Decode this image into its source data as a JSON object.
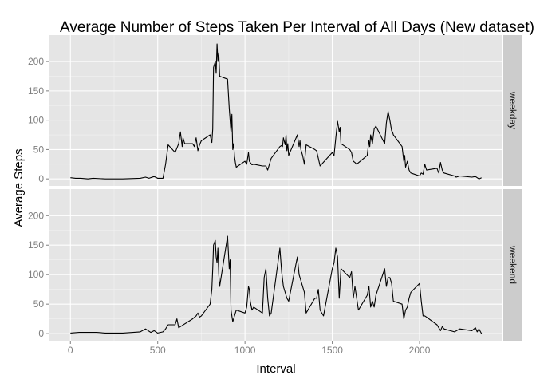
{
  "chart_data": {
    "type": "line",
    "title": "Average Number of Steps Taken Per Interval of All Days (New dataset)",
    "xlabel": "Interval",
    "ylabel": "Average Steps",
    "xlim": [
      -120,
      2475
    ],
    "ylim": [
      -12,
      245
    ],
    "x_ticks": [
      0,
      500,
      1000,
      1500,
      2000
    ],
    "y_ticks": [
      0,
      50,
      100,
      150,
      200
    ],
    "grid": true,
    "facet_strip_position": "right",
    "colors": {
      "panel_background": "#e5e5e5",
      "grid_major": "#ffffff",
      "grid_minor": "#f2f2f2",
      "strip_background": "#cccccc",
      "line": "#000000",
      "tick_label": "#7f7f7f"
    },
    "panels": [
      {
        "strip_label": "weekday",
        "x": [
          0,
          30,
          60,
          100,
          130,
          200,
          300,
          400,
          430,
          450,
          480,
          500,
          530,
          545,
          560,
          600,
          620,
          630,
          640,
          645,
          655,
          700,
          710,
          720,
          730,
          740,
          750,
          800,
          810,
          815,
          820,
          830,
          835,
          840,
          845,
          850,
          855,
          900,
          910,
          915,
          920,
          925,
          930,
          935,
          940,
          945,
          950,
          1000,
          1010,
          1020,
          1025,
          1030,
          1040,
          1050,
          1100,
          1120,
          1130,
          1150,
          1200,
          1210,
          1215,
          1220,
          1230,
          1235,
          1240,
          1245,
          1250,
          1300,
          1310,
          1315,
          1320,
          1330,
          1340,
          1350,
          1400,
          1410,
          1420,
          1430,
          1500,
          1510,
          1520,
          1530,
          1540,
          1545,
          1550,
          1600,
          1610,
          1620,
          1630,
          1640,
          1700,
          1710,
          1715,
          1720,
          1730,
          1740,
          1750,
          1800,
          1810,
          1820,
          1830,
          1840,
          1845,
          1850,
          1900,
          1910,
          1915,
          1920,
          1930,
          1940,
          1950,
          2000,
          2010,
          2020,
          2030,
          2040,
          2100,
          2110,
          2120,
          2130,
          2140,
          2200,
          2210,
          2230,
          2300,
          2320,
          2340,
          2355
        ],
        "y": [
          2,
          1,
          1,
          0,
          1,
          0,
          0,
          1,
          3,
          1,
          4,
          1,
          1,
          25,
          58,
          45,
          60,
          80,
          55,
          70,
          60,
          60,
          55,
          70,
          48,
          58,
          65,
          75,
          62,
          85,
          190,
          200,
          180,
          230,
          200,
          215,
          175,
          170,
          120,
          100,
          80,
          110,
          50,
          60,
          38,
          28,
          20,
          30,
          25,
          45,
          30,
          28,
          24,
          25,
          22,
          22,
          15,
          35,
          55,
          57,
          55,
          70,
          58,
          75,
          48,
          60,
          40,
          75,
          55,
          65,
          50,
          40,
          25,
          58,
          50,
          48,
          35,
          22,
          45,
          40,
          70,
          98,
          80,
          88,
          60,
          50,
          45,
          30,
          28,
          25,
          40,
          65,
          55,
          75,
          60,
          85,
          90,
          60,
          95,
          115,
          100,
          82,
          80,
          75,
          55,
          30,
          40,
          20,
          30,
          15,
          10,
          5,
          10,
          8,
          25,
          15,
          18,
          10,
          28,
          15,
          10,
          5,
          3,
          5,
          3,
          4,
          0,
          2
        ]
      },
      {
        "strip_label": "weekend",
        "x": [
          0,
          50,
          100,
          150,
          200,
          300,
          400,
          430,
          460,
          480,
          500,
          530,
          545,
          560,
          600,
          610,
          620,
          630,
          700,
          720,
          730,
          740,
          750,
          800,
          810,
          815,
          820,
          830,
          835,
          840,
          845,
          850,
          855,
          900,
          910,
          915,
          920,
          930,
          940,
          950,
          1000,
          1010,
          1020,
          1025,
          1030,
          1040,
          1050,
          1100,
          1110,
          1120,
          1130,
          1140,
          1150,
          1200,
          1210,
          1220,
          1230,
          1240,
          1250,
          1300,
          1310,
          1320,
          1330,
          1340,
          1350,
          1400,
          1410,
          1420,
          1430,
          1450,
          1500,
          1510,
          1520,
          1530,
          1540,
          1550,
          1600,
          1610,
          1620,
          1630,
          1640,
          1650,
          1700,
          1710,
          1720,
          1730,
          1740,
          1750,
          1800,
          1810,
          1820,
          1830,
          1840,
          1850,
          1900,
          1910,
          1920,
          1930,
          1940,
          1950,
          2000,
          2010,
          2020,
          2030,
          2040,
          2100,
          2110,
          2120,
          2130,
          2140,
          2200,
          2230,
          2300,
          2320,
          2330,
          2340,
          2355
        ],
        "y": [
          1,
          2,
          2,
          2,
          1,
          1,
          3,
          8,
          2,
          5,
          1,
          3,
          8,
          15,
          15,
          25,
          10,
          12,
          25,
          30,
          35,
          28,
          30,
          50,
          75,
          110,
          150,
          158,
          130,
          120,
          145,
          100,
          80,
          165,
          110,
          125,
          40,
          20,
          30,
          40,
          35,
          45,
          80,
          75,
          55,
          40,
          45,
          35,
          95,
          110,
          60,
          30,
          35,
          145,
          105,
          80,
          70,
          60,
          55,
          130,
          100,
          90,
          80,
          70,
          35,
          60,
          60,
          75,
          40,
          30,
          110,
          120,
          145,
          130,
          60,
          110,
          95,
          105,
          60,
          80,
          60,
          40,
          65,
          80,
          45,
          55,
          45,
          65,
          110,
          80,
          95,
          95,
          85,
          55,
          50,
          25,
          40,
          45,
          60,
          70,
          85,
          55,
          30,
          30,
          28,
          15,
          10,
          5,
          12,
          8,
          3,
          8,
          5,
          10,
          3,
          8,
          0
        ]
      }
    ]
  }
}
